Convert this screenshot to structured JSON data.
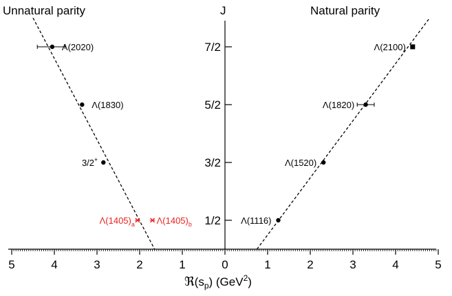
{
  "chart_data": {
    "type": "scatter",
    "title_left": "Unnatural parity",
    "title_right": "Natural parity",
    "ylabel": "J",
    "xlabel_script": "ℜ",
    "xlabel_rest": "(s",
    "xlabel_sub": "p",
    "xlabel_unit": ") (GeV",
    "xlabel_sup": "2",
    "xlabel_close": ")",
    "x_ticks": [
      "5",
      "4",
      "3",
      "2",
      "1",
      "0",
      "1",
      "2",
      "3",
      "4",
      "5"
    ],
    "y_ticks": [
      "1/2",
      "3/2",
      "5/2",
      "7/2"
    ],
    "xlim": [
      -5,
      5
    ],
    "ylim": [
      0,
      4
    ],
    "colors": {
      "main": "#000000",
      "highlight": "#e8231f"
    },
    "series": [
      {
        "side": "unnatural",
        "points": [
          {
            "label": "Λ(2020)",
            "x": 4.05,
            "j": 3.5,
            "xerr_lo": 0.3,
            "xerr_hi": 0.35,
            "marker": "circle"
          },
          {
            "label": "Λ(1830)",
            "x": 3.35,
            "j": 2.5,
            "marker": "circle"
          },
          {
            "label": "3/2",
            "label_sup": "+",
            "x": 2.85,
            "j": 1.5,
            "marker": "circle"
          }
        ]
      },
      {
        "side": "natural",
        "points": [
          {
            "label": "Λ(1116)",
            "x": 1.25,
            "j": 0.5,
            "marker": "circle"
          },
          {
            "label": "Λ(1520)",
            "x": 2.31,
            "j": 1.5,
            "marker": "circle"
          },
          {
            "label": "Λ(1820)",
            "x": 3.3,
            "j": 2.5,
            "xerr_lo": 0.2,
            "xerr_hi": 0.2,
            "marker": "circle"
          },
          {
            "label": "Λ(2100)",
            "x": 4.4,
            "j": 3.5,
            "marker": "square"
          }
        ]
      },
      {
        "side": "resonance-1405",
        "points": [
          {
            "label": "Λ(1405)",
            "label_sub": "a",
            "x": -2.05,
            "j": 0.5,
            "marker": "cross"
          },
          {
            "label": "Λ(1405)",
            "label_sub": "b",
            "x": -1.7,
            "j": 0.5,
            "marker": "cross"
          }
        ]
      }
    ],
    "trend_lines": [
      {
        "side": "unnatural",
        "from": {
          "x": 4.5,
          "j": 4.0
        },
        "to": {
          "x": 1.65,
          "j": 0.0
        }
      },
      {
        "side": "natural",
        "from": {
          "x": 0.75,
          "j": 0.0
        },
        "to": {
          "x": 4.8,
          "j": 4.0
        }
      }
    ]
  }
}
